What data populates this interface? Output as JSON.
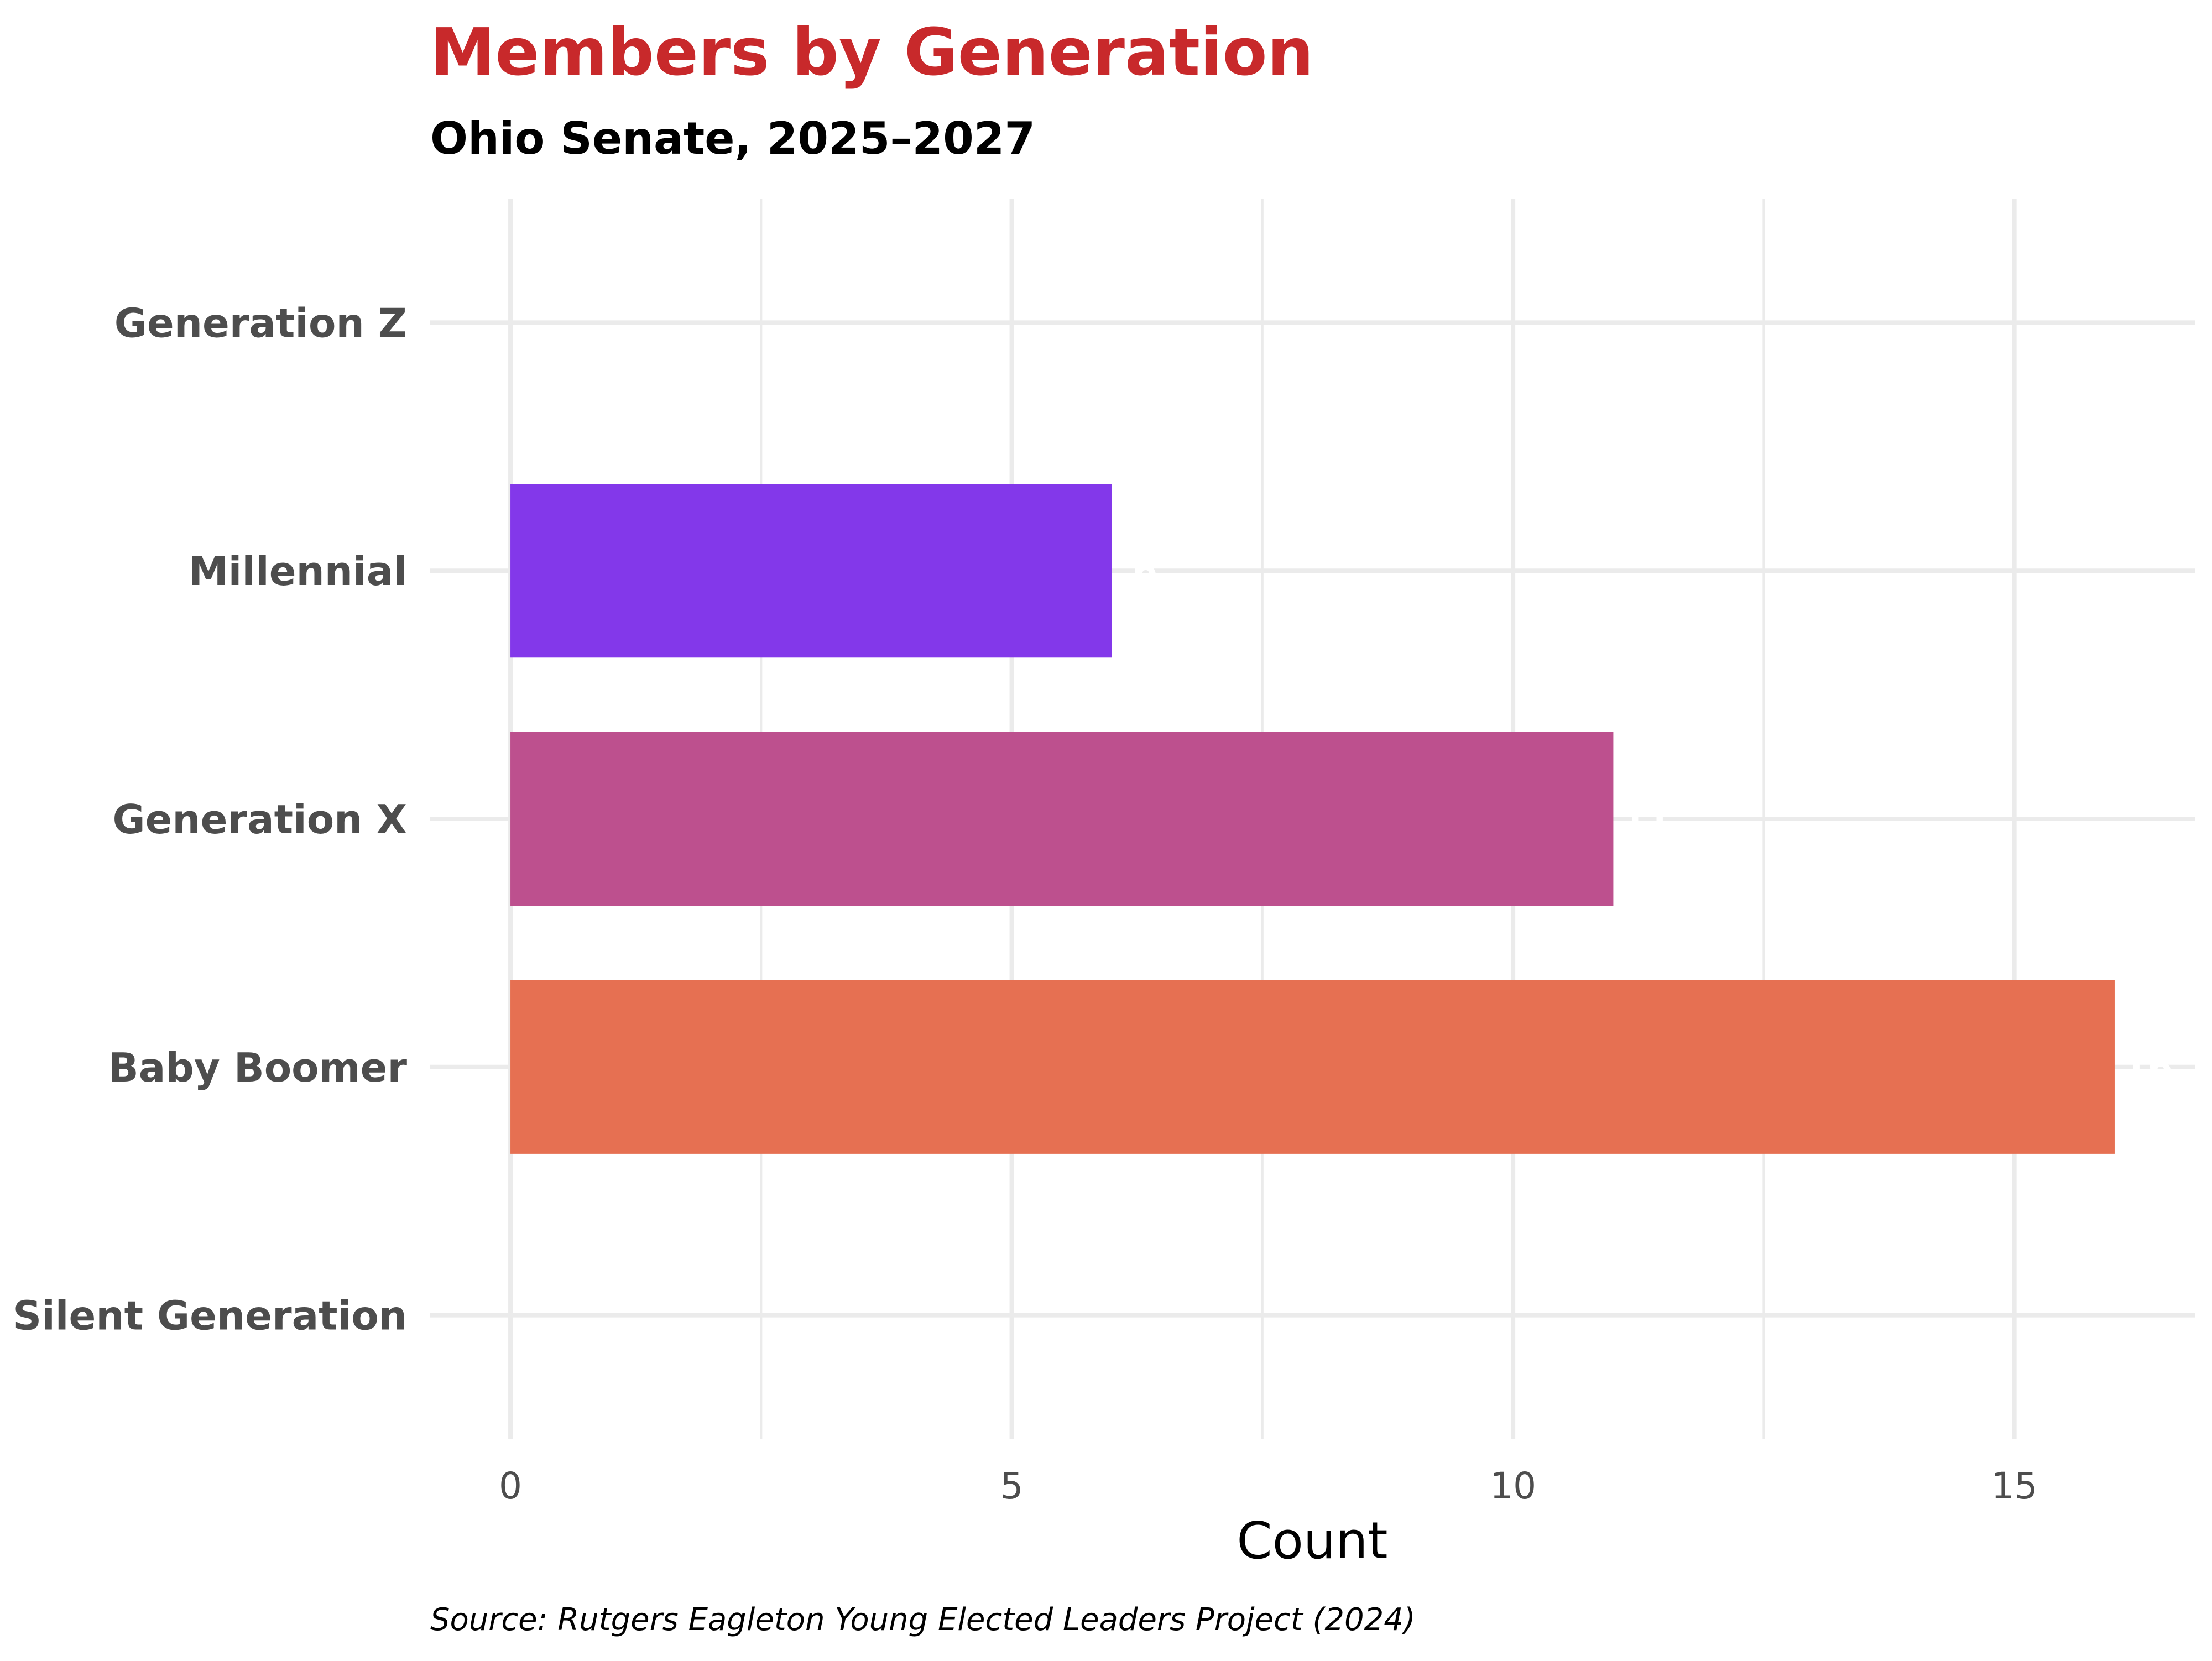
{
  "chart_data": {
    "type": "bar",
    "orientation": "horizontal",
    "title": "Members by Generation",
    "subtitle": "Ohio Senate, 2025–2027",
    "xlabel": "Count",
    "ylabel": "",
    "caption": "Source: Rutgers Eagleton Young Elected Leaders Project (2024)",
    "categories": [
      "Generation Z",
      "Millennial",
      "Generation X",
      "Baby Boomer",
      "Silent Generation"
    ],
    "values": [
      0,
      6,
      11,
      16,
      0
    ],
    "colors": [
      "#6a00a8",
      "#8338EA",
      "#BD508E",
      "#E67052",
      "#f0a03c"
    ],
    "xlim": [
      -0.8,
      16.8
    ],
    "xticks": [
      0,
      5,
      10,
      15
    ],
    "grid": true,
    "title_color": "#C8292B",
    "legend": "none"
  }
}
